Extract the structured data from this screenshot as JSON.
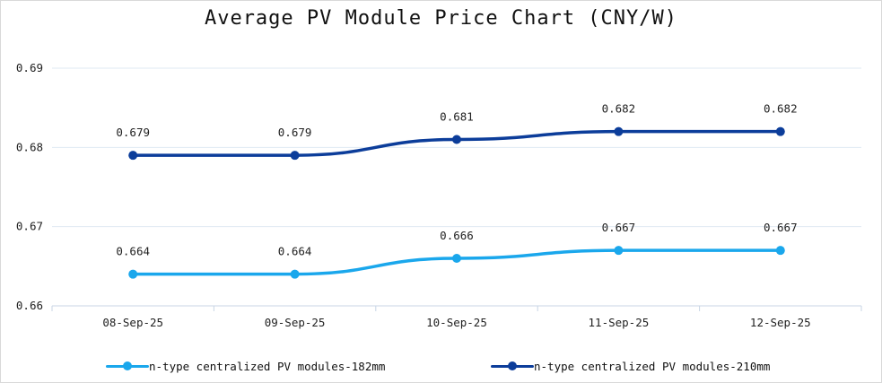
{
  "chart_data": {
    "type": "line",
    "title": "Average PV Module Price Chart (CNY/W)",
    "xlabel": "",
    "ylabel": "",
    "categories": [
      "08-Sep-25",
      "09-Sep-25",
      "10-Sep-25",
      "11-Sep-25",
      "12-Sep-25"
    ],
    "ylim": [
      0.66,
      0.69
    ],
    "yticks": [
      "0.66",
      "0.67",
      "0.68",
      "0.69"
    ],
    "grid": true,
    "legend_position": "bottom",
    "series": [
      {
        "name": "n-type centralized PV modules-182mm",
        "color": "#1aa7ec",
        "values": [
          0.664,
          0.664,
          0.666,
          0.667,
          0.667
        ],
        "labels": [
          "0.664",
          "0.664",
          "0.666",
          "0.667",
          "0.667"
        ]
      },
      {
        "name": "n-type centralized PV modules-210mm",
        "color": "#0c3d9a",
        "values": [
          0.679,
          0.679,
          0.681,
          0.682,
          0.682
        ],
        "labels": [
          "0.679",
          "0.679",
          "0.681",
          "0.682",
          "0.682"
        ]
      }
    ]
  }
}
